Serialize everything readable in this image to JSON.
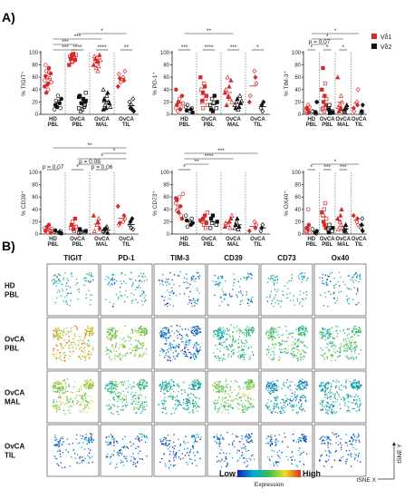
{
  "panel_a_label": "A)",
  "panel_b_label": "B)",
  "legend": {
    "items": [
      {
        "label": "Vδ1",
        "color": "#d62a2a"
      },
      {
        "label": "Vδ2",
        "color": "#111111"
      }
    ]
  },
  "chart_data": [
    {
      "type": "scatter",
      "ylabel": "% TIGIT⁺",
      "yticks": [
        "0",
        "20",
        "40",
        "60",
        "80",
        "100"
      ],
      "ylim": [
        0,
        100
      ],
      "categories": [
        "HD PBL",
        "OvCA PBL",
        "OvCA MAL",
        "OvCA TIL"
      ],
      "annotations": [
        "***",
        "****",
        "****",
        "**",
        "***",
        "***",
        "*"
      ],
      "series": [
        {
          "name": "Vδ1",
          "groups": [
            [
              55,
              62,
              70,
              48,
              40,
              75,
              58,
              66,
              52,
              45,
              80,
              35,
              60,
              50,
              68
            ],
            [
              90,
              95,
              85,
              98,
              92,
              88,
              96,
              80,
              94,
              90,
              86,
              97,
              93
            ],
            [
              92,
              85,
              78,
              96,
              88,
              80,
              94,
              90,
              75,
              86,
              70
            ],
            [
              60,
              55,
              70,
              45,
              65,
              58,
              52
            ]
          ]
        },
        {
          "name": "Vδ2",
          "groups": [
            [
              20,
              18,
              10,
              25,
              8,
              15,
              22,
              12,
              30
            ],
            [
              15,
              22,
              10,
              30,
              5,
              18,
              8,
              25,
              12,
              20,
              35,
              28
            ],
            [
              40,
              25,
              15,
              10,
              30,
              35,
              20,
              18,
              12,
              8,
              22
            ],
            [
              20,
              10,
              15,
              8,
              25,
              5
            ]
          ]
        }
      ]
    },
    {
      "type": "scatter",
      "ylabel": "% PD-1⁺",
      "yticks": [
        "0",
        "20",
        "40",
        "60",
        "80",
        "100"
      ],
      "ylim": [
        0,
        100
      ],
      "categories": [
        "HD PBL",
        "OvCA PBL",
        "OvCA MAL",
        "OvCA TIL"
      ],
      "annotations": [
        "**",
        "***",
        "****",
        "***",
        "*"
      ],
      "series": [
        {
          "name": "Vδ1",
          "groups": [
            [
              10,
              15,
              5,
              20,
              25,
              8,
              12,
              30,
              18,
              40
            ],
            [
              20,
              35,
              50,
              45,
              25,
              30,
              15,
              60,
              40,
              22,
              10
            ],
            [
              30,
              45,
              25,
              55,
              20,
              35,
              40,
              15,
              60,
              28
            ],
            [
              70,
              60,
              50,
              20,
              30
            ]
          ]
        },
        {
          "name": "Vδ2",
          "groups": [
            [
              5,
              8,
              10,
              3,
              12,
              6,
              15
            ],
            [
              10,
              20,
              15,
              8,
              25,
              5,
              18,
              30
            ],
            [
              15,
              10,
              20,
              25,
              8,
              12,
              30,
              18,
              22
            ],
            [
              10,
              15,
              5,
              20
            ]
          ]
        }
      ]
    },
    {
      "type": "scatter",
      "ylabel": "% TIM-3⁺",
      "yticks": [
        "0",
        "20",
        "40",
        "60",
        "80",
        "100"
      ],
      "ylim": [
        0,
        100
      ],
      "categories": [
        "HD PBL",
        "OvCA PBL",
        "OvCA MAL",
        "OvCA TIL"
      ],
      "annotations": [
        "*",
        "p = 0.07",
        "*",
        "*",
        "*",
        "*"
      ],
      "series": [
        {
          "name": "Vδ1",
          "groups": [
            [
              5,
              10,
              2,
              8,
              15,
              3,
              12
            ],
            [
              10,
              20,
              5,
              30,
              50,
              15,
              25,
              40,
              8,
              75
            ],
            [
              15,
              10,
              30,
              8,
              20,
              60,
              12,
              5
            ],
            [
              20,
              15,
              40,
              10,
              5
            ]
          ]
        },
        {
          "name": "Vδ2",
          "groups": [
            [
              2,
              3,
              1,
              20,
              5
            ],
            [
              5,
              3,
              10,
              8,
              15,
              2
            ],
            [
              5,
              8,
              3,
              10,
              12,
              15
            ],
            [
              2,
              5,
              3,
              15
            ]
          ]
        }
      ]
    },
    {
      "type": "scatter",
      "ylabel": "% CD39⁺",
      "yticks": [
        "0",
        "20",
        "40",
        "60",
        "80",
        "100"
      ],
      "ylim": [
        0,
        100
      ],
      "categories": [
        "HD PBL",
        "OvCA PBL",
        "OvCA MAL",
        "OvCA TIL"
      ],
      "annotations": [
        "p = 0.07",
        "*",
        "p = 0.06",
        "p = 0.08",
        "*",
        "*",
        "**"
      ],
      "series": [
        {
          "name": "Vδ1",
          "groups": [
            [
              10,
              5,
              8,
              12,
              3,
              15,
              6,
              2,
              9
            ],
            [
              10,
              15,
              20,
              8,
              5,
              25,
              12
            ],
            [
              15,
              20,
              25,
              10,
              8,
              30,
              5
            ],
            [
              20,
              30,
              25,
              45,
              15,
              18
            ]
          ]
        },
        {
          "name": "Vδ2",
          "groups": [
            [
              2,
              3,
              5,
              1,
              4,
              6
            ],
            [
              3,
              5,
              2,
              8,
              4
            ],
            [
              5,
              8,
              3,
              10,
              12,
              2
            ],
            [
              15,
              20,
              10,
              25,
              8
            ]
          ]
        }
      ]
    },
    {
      "type": "scatter",
      "ylabel": "% CD73⁺",
      "yticks": [
        "0",
        "20",
        "40",
        "60",
        "80",
        "100"
      ],
      "ylim": [
        0,
        100
      ],
      "categories": [
        "HD PBL",
        "OvCA PBL",
        "OvCA MAL",
        "OvCA TIL"
      ],
      "annotations": [
        "*",
        "**",
        "****",
        "***"
      ],
      "series": [
        {
          "name": "Vδ1",
          "groups": [
            [
              50,
              55,
              40,
              35,
              60,
              45,
              30,
              25,
              65,
              58,
              38
            ],
            [
              20,
              25,
              15,
              30,
              10,
              18,
              35,
              22
            ],
            [
              15,
              20,
              10,
              25,
              30,
              12,
              18
            ],
            [
              20,
              10,
              15,
              5
            ]
          ]
        },
        {
          "name": "Vδ2",
          "groups": [
            [
              20,
              15,
              25,
              18,
              30,
              22,
              12
            ],
            [
              15,
              20,
              10,
              25,
              18,
              30
            ],
            [
              10,
              15,
              20,
              25,
              8,
              12
            ],
            [
              5,
              10,
              15
            ]
          ]
        }
      ]
    },
    {
      "type": "scatter",
      "ylabel": "% OX40⁺",
      "yticks": [
        "0",
        "20",
        "40",
        "60",
        "80",
        "100"
      ],
      "ylim": [
        0,
        100
      ],
      "categories": [
        "HD PBL",
        "OvCA PBL",
        "OvCA MAL",
        "OvCA TIL"
      ],
      "annotations": [
        "*",
        "***",
        "***",
        "*"
      ],
      "series": [
        {
          "name": "Vδ1",
          "groups": [
            [
              5,
              10,
              3,
              8,
              40,
              15,
              2
            ],
            [
              30,
              20,
              40,
              15,
              50,
              10,
              25,
              35
            ],
            [
              20,
              30,
              15,
              40,
              10,
              25,
              8
            ],
            [
              20,
              25,
              15,
              30
            ]
          ]
        },
        {
          "name": "Vδ2",
          "groups": [
            [
              2,
              3,
              1,
              5,
              8
            ],
            [
              5,
              10,
              8,
              3,
              15
            ],
            [
              8,
              5,
              10,
              15,
              3
            ],
            [
              10,
              15,
              25,
              5
            ]
          ]
        }
      ]
    }
  ],
  "tsne": {
    "columns": [
      "TIGIT",
      "PD-1",
      "TIM-3",
      "CD39",
      "CD73",
      "Ox40"
    ],
    "rows": [
      "HD PBL",
      "OvCA PBL",
      "OvCA MAL",
      "OvCA TIL"
    ],
    "intensity": [
      [
        0.35,
        0.3,
        0.15,
        0.25,
        0.35,
        0.25
      ],
      [
        0.75,
        0.6,
        0.15,
        0.4,
        0.45,
        0.45
      ],
      [
        0.6,
        0.45,
        0.35,
        0.55,
        0.25,
        0.3
      ],
      [
        0.15,
        0.15,
        0.1,
        0.15,
        0.15,
        0.1
      ]
    ],
    "density": [
      0.35,
      0.95,
      1.0,
      0.45
    ],
    "colorbar_low": "Low",
    "colorbar_high": "High",
    "colorbar_title": "Expression",
    "axis_x": "tSNE X",
    "axis_y": "tSNE Y"
  }
}
